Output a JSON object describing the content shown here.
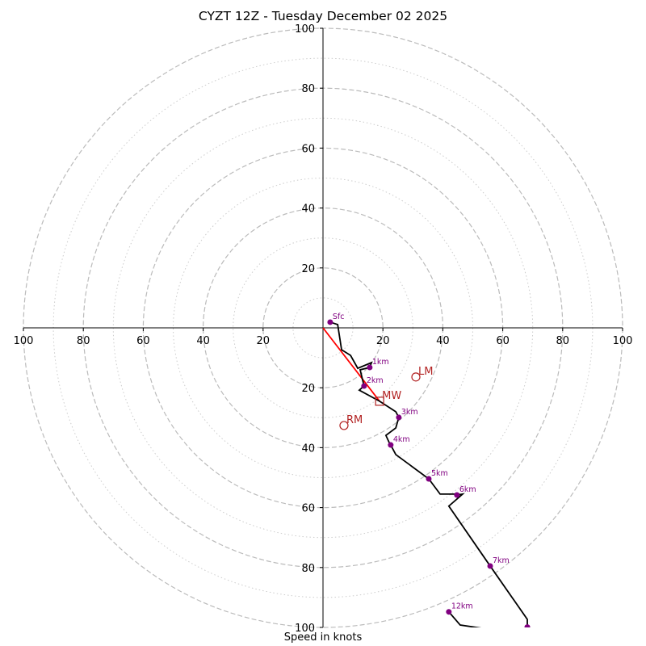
{
  "chart_data": {
    "type": "line",
    "subtype": "hodograph",
    "title": "CYZT 12Z - Tuesday December 02 2025",
    "xlabel": "Speed in knots",
    "ylabel": "",
    "xlim": [
      -100,
      100
    ],
    "ylim": [
      -100,
      100
    ],
    "grid": "concentric rings every 10 kt (dashed at 20 kt multiples, dotted between)",
    "x_ticks": [
      100,
      80,
      60,
      40,
      20,
      20,
      40,
      60,
      80,
      100
    ],
    "y_ticks": [
      100,
      80,
      60,
      40,
      20,
      20,
      40,
      60,
      80,
      100
    ],
    "series": [
      {
        "name": "Hodograph trace (u, v knots)",
        "color": "#000000",
        "points": [
          [
            2.4,
            1.9
          ],
          [
            4.9,
            1.1
          ],
          [
            6.2,
            -7.3
          ],
          [
            9.2,
            -9.2
          ],
          [
            11.6,
            -13.5
          ],
          [
            16.2,
            -11.6
          ],
          [
            15.6,
            -13.2
          ],
          [
            12.4,
            -14.0
          ],
          [
            13.7,
            -19.4
          ],
          [
            12.1,
            -20.8
          ],
          [
            18.9,
            -24.5
          ],
          [
            24.3,
            -28.0
          ],
          [
            25.3,
            -29.9
          ],
          [
            24.3,
            -33.4
          ],
          [
            21.0,
            -35.9
          ],
          [
            22.1,
            -38.3
          ],
          [
            22.6,
            -39.1
          ],
          [
            24.3,
            -42.3
          ],
          [
            35.3,
            -50.4
          ],
          [
            39.1,
            -55.5
          ],
          [
            45.6,
            -55.5
          ],
          [
            44.7,
            -55.8
          ],
          [
            46.6,
            -55.5
          ],
          [
            42.0,
            -59.5
          ],
          [
            55.8,
            -79.5
          ],
          [
            68.2,
            -97.3
          ],
          [
            68.2,
            -99.7
          ]
        ]
      },
      {
        "name": "Upper segment",
        "color": "#000000",
        "points": [
          [
            42.0,
            -94.8
          ],
          [
            45.8,
            -99.2
          ],
          [
            58.0,
            -101.0
          ]
        ]
      }
    ],
    "height_markers": [
      {
        "label": "Sfc",
        "u": 2.4,
        "v": 1.9
      },
      {
        "label": "1km",
        "u": 15.6,
        "v": -13.2
      },
      {
        "label": "2km",
        "u": 13.7,
        "v": -19.4
      },
      {
        "label": "3km",
        "u": 25.3,
        "v": -29.9
      },
      {
        "label": "4km",
        "u": 22.6,
        "v": -39.1
      },
      {
        "label": "5km",
        "u": 35.3,
        "v": -50.4
      },
      {
        "label": "6km",
        "u": 44.7,
        "v": -55.8
      },
      {
        "label": "7km",
        "u": 55.8,
        "v": -79.5
      },
      {
        "label": "12km",
        "u": 42.0,
        "v": -94.8
      },
      {
        "label": "",
        "u": 68.2,
        "v": -99.9
      }
    ],
    "storm_motion": {
      "mean_wind": {
        "label": "MW",
        "u": 18.9,
        "v": -24.5
      },
      "left_mover": {
        "label": "LM",
        "u": 31.0,
        "v": -16.4
      },
      "right_mover": {
        "label": "RM",
        "u": 7.0,
        "v": -32.6
      },
      "vector_color": "#ff0000",
      "marker_color": "#b22222"
    },
    "marker_color": "#800080"
  }
}
